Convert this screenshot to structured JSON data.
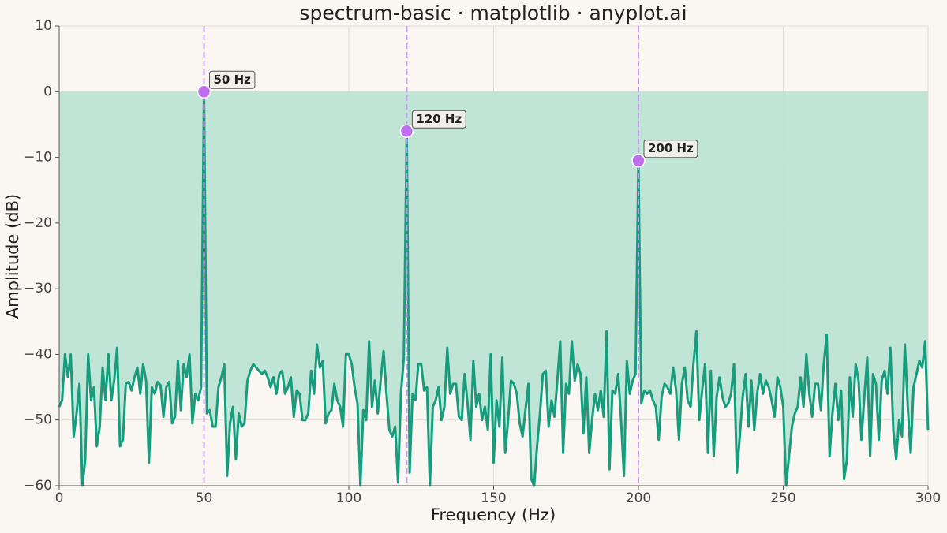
{
  "chart_data": {
    "type": "line",
    "title": "spectrum-basic · matplotlib · anyplot.ai",
    "xlabel": "Frequency (Hz)",
    "ylabel": "Amplitude (dB)",
    "xlim": [
      0,
      300
    ],
    "ylim": [
      -60,
      10
    ],
    "xticks": [
      0,
      50,
      100,
      150,
      200,
      250,
      300
    ],
    "yticks": [
      {
        "value": 10,
        "label": "10"
      },
      {
        "value": 0,
        "label": "0"
      },
      {
        "value": -10,
        "label": "−10"
      },
      {
        "value": -20,
        "label": "−20"
      },
      {
        "value": -30,
        "label": "−30"
      },
      {
        "value": -40,
        "label": "−40"
      },
      {
        "value": -50,
        "label": "−50"
      },
      {
        "value": -60,
        "label": "−60"
      }
    ],
    "grid": true,
    "fill_to": 0,
    "x": [
      0,
      1,
      2,
      3,
      4,
      5,
      6,
      7,
      8,
      9,
      10,
      11,
      12,
      13,
      14,
      15,
      16,
      17,
      18,
      19,
      20,
      21,
      22,
      23,
      24,
      25,
      26,
      27,
      28,
      29,
      30,
      31,
      32,
      33,
      34,
      35,
      36,
      37,
      38,
      39,
      40,
      41,
      42,
      43,
      44,
      45,
      46,
      47,
      48,
      49,
      50,
      51,
      52,
      53,
      54,
      55,
      56,
      57,
      58,
      59,
      60,
      61,
      62,
      63,
      64,
      65,
      66,
      67,
      68,
      69,
      70,
      71,
      72,
      73,
      74,
      75,
      76,
      77,
      78,
      79,
      80,
      81,
      82,
      83,
      84,
      85,
      86,
      87,
      88,
      89,
      90,
      91,
      92,
      93,
      94,
      95,
      96,
      97,
      98,
      99,
      100,
      101,
      102,
      103,
      104,
      105,
      106,
      107,
      108,
      109,
      110,
      111,
      112,
      113,
      114,
      115,
      116,
      117,
      118,
      119,
      120,
      121,
      122,
      123,
      124,
      125,
      126,
      127,
      128,
      129,
      130,
      131,
      132,
      133,
      134,
      135,
      136,
      137,
      138,
      139,
      140,
      141,
      142,
      143,
      144,
      145,
      146,
      147,
      148,
      149,
      150,
      151,
      152,
      153,
      154,
      155,
      156,
      157,
      158,
      159,
      160,
      161,
      162,
      163,
      164,
      165,
      166,
      167,
      168,
      169,
      170,
      171,
      172,
      173,
      174,
      175,
      176,
      177,
      178,
      179,
      180,
      181,
      182,
      183,
      184,
      185,
      186,
      187,
      188,
      189,
      190,
      191,
      192,
      193,
      194,
      195,
      196,
      197,
      198,
      199,
      200,
      201,
      202,
      203,
      204,
      205,
      206,
      207,
      208,
      209,
      210,
      211,
      212,
      213,
      214,
      215,
      216,
      217,
      218,
      219,
      220,
      221,
      222,
      223,
      224,
      225,
      226,
      227,
      228,
      229,
      230,
      231,
      232,
      233,
      234,
      235,
      236,
      237,
      238,
      239,
      240,
      241,
      242,
      243,
      244,
      245,
      246,
      247,
      248,
      249,
      250,
      251,
      252,
      253,
      254,
      255,
      256,
      257,
      258,
      259,
      260,
      261,
      262,
      263,
      264,
      265,
      266,
      267,
      268,
      269,
      270,
      271,
      272,
      273,
      274,
      275,
      276,
      277,
      278,
      279,
      280,
      281,
      282,
      283,
      284,
      285,
      286,
      287,
      288,
      289,
      290,
      291,
      292,
      293,
      294,
      295,
      296,
      297,
      298,
      299,
      300
    ],
    "series": [
      {
        "color": "#179c7d",
        "fill": "#bde3d3",
        "values": [
          -48,
          -47,
          -40,
          -43.5,
          -40,
          -52.5,
          -49,
          -44.5,
          -60,
          -56,
          -40,
          -47,
          -45,
          -54,
          -51,
          -42,
          -47,
          -40,
          -47,
          -44,
          -39,
          -54,
          -53,
          -44.5,
          -44.2,
          -45.5,
          -43.5,
          -42,
          -46,
          -41.5,
          -44,
          -56.5,
          -45,
          -46,
          -44.2,
          -44.7,
          -49.5,
          -45,
          -44.2,
          -50.5,
          -49.5,
          -41,
          -48.5,
          -41.5,
          -43.5,
          -40,
          -50.5,
          -46,
          -47,
          -45,
          0,
          -49,
          -48.5,
          -51,
          -51,
          -45,
          -43.5,
          -41.5,
          -58.5,
          -50.5,
          -48,
          -56,
          -49,
          -51,
          -50.5,
          -44,
          -42.5,
          -41.5,
          -42,
          -42.5,
          -43,
          -42.5,
          -43.5,
          -45,
          -43.5,
          -46,
          -43,
          -42.5,
          -46,
          -45,
          -43.5,
          -49.5,
          -45.5,
          -46,
          -50,
          -50,
          -49,
          -42.5,
          -46,
          -38.5,
          -42,
          -41,
          -50.5,
          -49,
          -48.5,
          -44.5,
          -47,
          -48,
          -51,
          -40,
          -40,
          -41.5,
          -45,
          -47.5,
          -60,
          -48.5,
          -50,
          -38,
          -48,
          -44,
          -49,
          -44,
          -39.5,
          -46,
          -51.5,
          -52.5,
          -51,
          -59.5,
          -46,
          -40.5,
          -6,
          -58,
          -46,
          -47,
          -41.5,
          -41.5,
          -45.5,
          -45,
          -60,
          -48,
          -47,
          -45,
          -50,
          -48,
          -39,
          -46,
          -44.5,
          -44.5,
          -49.5,
          -50,
          -43,
          -47.5,
          -53,
          -41,
          -48,
          -46,
          -50,
          -48,
          -51.5,
          -40,
          -56.5,
          -47,
          -51,
          -40.5,
          -55,
          -50,
          -44,
          -44.5,
          -46,
          -50.5,
          -52.5,
          -48.5,
          -44.5,
          -59,
          -60,
          -54,
          -49,
          -43,
          -42.5,
          -51,
          -47,
          -49.5,
          -44,
          -38,
          -55,
          -44.5,
          -46,
          -38,
          -44,
          -41.5,
          -43,
          -52,
          -43.5,
          -55,
          -50,
          -46,
          -48.5,
          -45.5,
          -49.5,
          -36.5,
          -57.5,
          -45.5,
          -46,
          -43,
          -50,
          -58.5,
          -41,
          -46,
          -44,
          -43,
          -10.5,
          -47.5,
          -45.5,
          -46,
          -45.5,
          -47,
          -48,
          -53,
          -46.5,
          -44.5,
          -45,
          -46,
          -42,
          -45.5,
          -53,
          -44.5,
          -42,
          -47,
          -48,
          -41.5,
          -36.5,
          -50,
          -45.5,
          -41.5,
          -55,
          -42.5,
          -55.5,
          -46.5,
          -43.5,
          -46.5,
          -48,
          -47.5,
          -46,
          -41.5,
          -58,
          -52.5,
          -46.5,
          -43,
          -51,
          -44,
          -51.5,
          -46,
          -43,
          -46,
          -44,
          -45,
          -47,
          -49.5,
          -43.5,
          -45,
          -48,
          -60,
          -55.5,
          -51,
          -49,
          -48,
          -43.5,
          -48,
          -40,
          -46,
          -49.5,
          -44.5,
          -44.5,
          -48.5,
          -41.5,
          -37,
          -55.5,
          -49,
          -44.5,
          -50,
          -45.5,
          -59,
          -56,
          -43.5,
          -49.5,
          -41.5,
          -44,
          -53,
          -46.5,
          -40.5,
          -55.5,
          -43,
          -44.5,
          -53,
          -44,
          -42.5,
          -46,
          -39,
          -51.5,
          -56,
          -50,
          -52.5,
          -38.5,
          -48,
          -55,
          -45,
          -43,
          -41,
          -42,
          -38,
          -51.5
        ]
      }
    ],
    "peaks": {
      "color": "#c06ef0",
      "line_color": "#c79af0",
      "x": [
        50,
        120,
        200
      ],
      "values": [
        0,
        -6,
        -10.5
      ],
      "labels": [
        "50 Hz",
        "120 Hz",
        "200 Hz"
      ]
    }
  }
}
